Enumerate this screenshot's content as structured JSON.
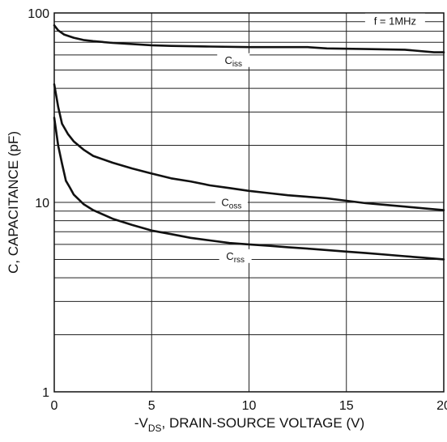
{
  "chart_data": {
    "type": "line",
    "xlabel": {
      "prefix": "-V",
      "sub": "DS",
      "suffix": ", DRAIN-SOURCE VOLTAGE (V)"
    },
    "ylabel": "C, CAPACITANCE (pF)",
    "x_scale": "linear",
    "y_scale": "log",
    "xlim": [
      0,
      20
    ],
    "ylim": [
      1,
      100
    ],
    "grid": true,
    "x_ticks": [
      "0",
      "5",
      "10",
      "15",
      "20"
    ],
    "y_ticks": [
      "1",
      "10",
      "100"
    ],
    "annotation": "f = 1MHz",
    "series": [
      {
        "name": "Ciss",
        "label_main": "C",
        "label_sub": "iss",
        "x": [
          0,
          0.2,
          0.5,
          1,
          1.5,
          2,
          3,
          4,
          5,
          6,
          8,
          10,
          12,
          13,
          14,
          16,
          18,
          19.5,
          20
        ],
        "y": [
          86,
          81,
          77,
          74,
          72,
          71,
          69.5,
          68.5,
          67.5,
          67,
          66.5,
          66,
          66,
          66,
          65,
          64.5,
          64,
          62,
          62
        ]
      },
      {
        "name": "Coss",
        "label_main": "C",
        "label_sub": "oss",
        "x": [
          0,
          0.2,
          0.4,
          0.7,
          1,
          1.5,
          2,
          3,
          4,
          5,
          6,
          7,
          8,
          9,
          10,
          11,
          12,
          13,
          14,
          15,
          16,
          17,
          18,
          19,
          20
        ],
        "y": [
          42,
          32,
          26,
          23,
          21,
          19,
          17.6,
          16.2,
          15.1,
          14.2,
          13.4,
          12.9,
          12.3,
          11.9,
          11.5,
          11.2,
          10.9,
          10.7,
          10.5,
          10.2,
          9.9,
          9.7,
          9.5,
          9.3,
          9.1
        ]
      },
      {
        "name": "Crss",
        "label_main": "C",
        "label_sub": "rss",
        "x": [
          0,
          0.2,
          0.4,
          0.6,
          0.8,
          1,
          1.5,
          2,
          3,
          4,
          5,
          6,
          7,
          8,
          9,
          10,
          11,
          12,
          13,
          14,
          15,
          16,
          17,
          18,
          19,
          20
        ],
        "y": [
          28,
          20,
          16,
          13,
          12,
          11,
          9.8,
          9.1,
          8.2,
          7.6,
          7.1,
          6.8,
          6.5,
          6.3,
          6.1,
          6.0,
          5.9,
          5.8,
          5.7,
          5.6,
          5.5,
          5.4,
          5.3,
          5.2,
          5.1,
          5.0
        ]
      }
    ]
  }
}
